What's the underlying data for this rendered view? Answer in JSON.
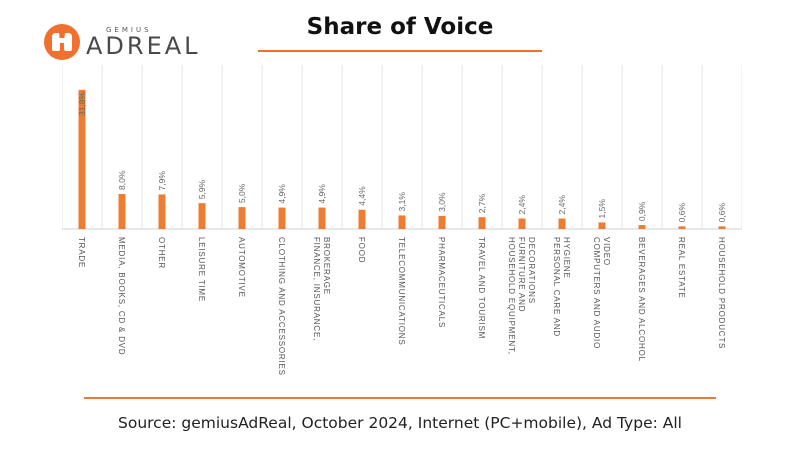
{
  "logo": {
    "small_text": "GEMIUS",
    "big_text": "ADREAL"
  },
  "title": "Share of Voice",
  "source": "Source: gemiusAdReal, October 2024, Internet (PC+mobile), Ad Type: All",
  "colors": {
    "accent": "#F07030",
    "bar": "#ED7D31",
    "grid": "#E4E4E4"
  },
  "chart_data": {
    "type": "bar",
    "title": "Share of Voice",
    "categories": [
      [
        "TRADE"
      ],
      [
        "MEDIA, BOOKS, CD & DVD"
      ],
      [
        "OTHER"
      ],
      [
        "LEISURE TIME"
      ],
      [
        "AUTOMOTIVE"
      ],
      [
        "CLOTHING AND ACCESSORIES"
      ],
      [
        "FINANCE, INSURANCE,",
        "BROKERAGE"
      ],
      [
        "FOOD"
      ],
      [
        "TELECOMMUNICATIONS"
      ],
      [
        "PHARMACEUTICALS"
      ],
      [
        "TRAVEL AND TOURISM"
      ],
      [
        "HOUSEHOLD EQUIPMENT,",
        "FURNITURE AND",
        "DECORATIONS"
      ],
      [
        "PERSONAL CARE AND",
        "HYGIENE"
      ],
      [
        "COMPUTERS AND AUDIO",
        "VIDEO"
      ],
      [
        "BEVERAGES AND ALCOHOL"
      ],
      [
        "REAL ESTATE"
      ],
      [
        "HOUSEHOLD PRODUCTS"
      ]
    ],
    "values": [
      31.8,
      8.0,
      7.9,
      5.9,
      5.0,
      4.9,
      4.9,
      4.4,
      3.1,
      3.0,
      2.7,
      2.4,
      2.4,
      1.5,
      0.9,
      0.6,
      0.6
    ],
    "value_labels": [
      "31,8%",
      "8,0%",
      "7,9%",
      "5,9%",
      "5,0%",
      "4,9%",
      "4,9%",
      "4,4%",
      "3,1%",
      "3,0%",
      "2,7%",
      "2,4%",
      "2,4%",
      "1,5%",
      "0,9%",
      "0,6%",
      "0,6%"
    ],
    "ylim": [
      0,
      32
    ],
    "unit": "%",
    "grid": true,
    "legend": "none"
  }
}
